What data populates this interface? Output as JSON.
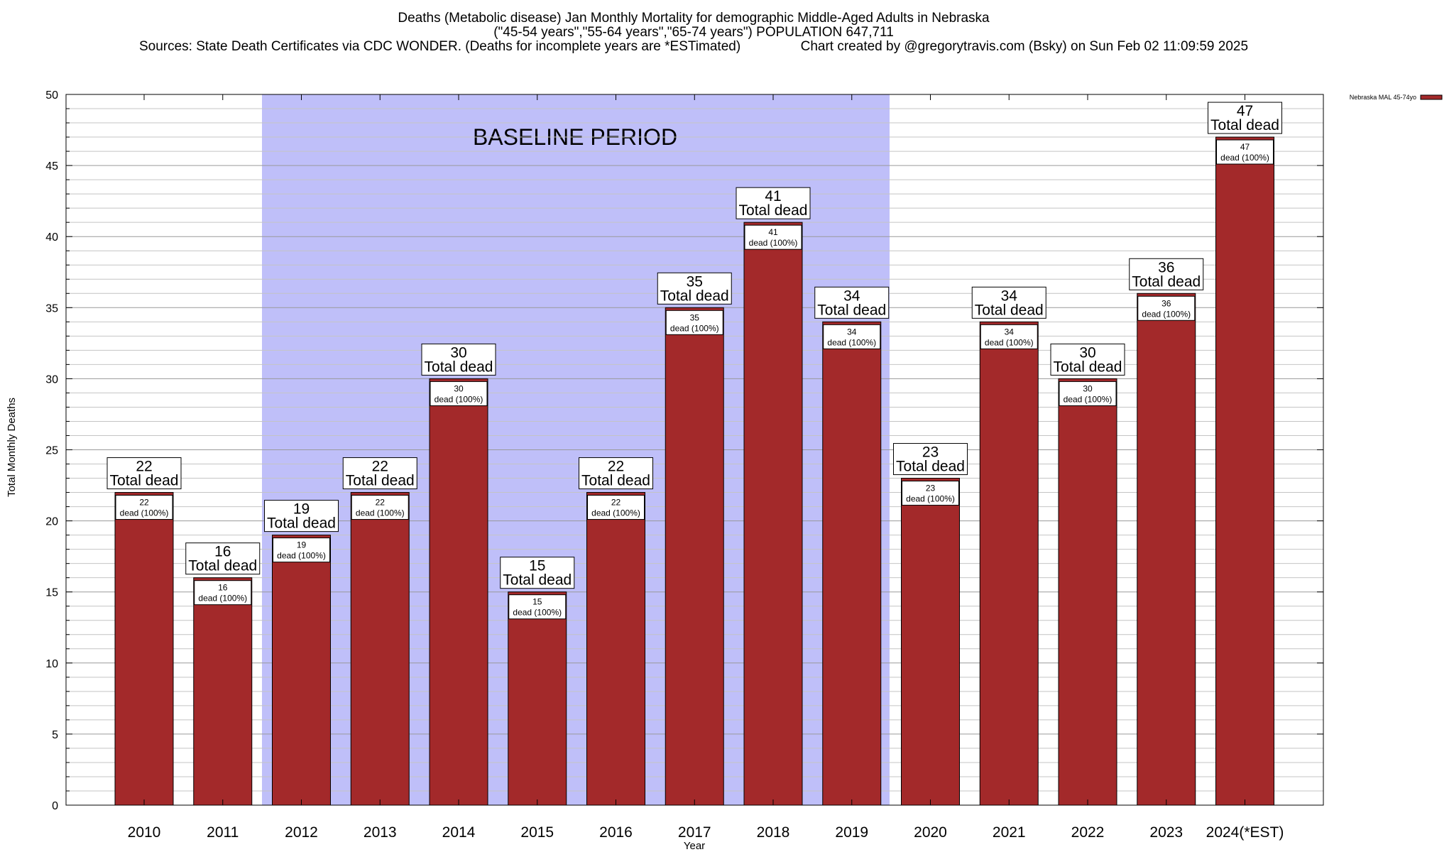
{
  "chart_data": {
    "type": "bar",
    "title_lines": [
      "Deaths (Metabolic disease) Jan Monthly Mortality for demographic Middle-Aged Adults in Nebraska",
      "(\"45-54 years\",\"55-64 years\",\"65-74 years\") POPULATION 647,711",
      "Sources: State Death Certificates via CDC WONDER. (Deaths for incomplete years are *ESTimated)                Chart created by @gregorytravis.com (Bsky) on Sun Feb 02 11:09:59 2025"
    ],
    "xlabel": "Year",
    "ylabel": "Total Monthly Deaths",
    "ylim": [
      0,
      50
    ],
    "y_ticks": [
      "0",
      "5",
      "10",
      "15",
      "20",
      "25",
      "30",
      "35",
      "40",
      "45",
      "50"
    ],
    "categories": [
      "2010",
      "2011",
      "2012",
      "2013",
      "2014",
      "2015",
      "2016",
      "2017",
      "2018",
      "2019",
      "2020",
      "2021",
      "2022",
      "2023",
      "2024(*EST)"
    ],
    "series": [
      {
        "name": "Nebraska MAL 45-74yo",
        "color": "#a3292a",
        "values": [
          22,
          16,
          19,
          22,
          30,
          15,
          22,
          35,
          41,
          34,
          23,
          34,
          30,
          36,
          47
        ]
      }
    ],
    "total_label_text": "Total dead",
    "inner_label_text": "dead (100%)",
    "baseline": {
      "label": "BASELINE PERIOD",
      "start": "2012",
      "end": "2019",
      "color": "#bfbff9"
    },
    "grid": true,
    "legend_position": "top-right"
  }
}
